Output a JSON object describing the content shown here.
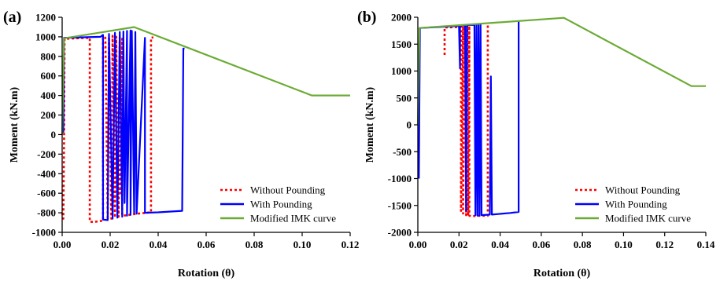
{
  "chart_data": [
    {
      "type": "line",
      "panel_label": "(a)",
      "xlabel": "Rotation (θ)",
      "ylabel": "Moment (kN.m)",
      "xlim": [
        0,
        0.12
      ],
      "ylim": [
        -1000,
        1200
      ],
      "xticks": [
        0.0,
        0.02,
        0.04,
        0.06,
        0.08,
        0.1,
        0.12
      ],
      "xtick_labels": [
        "0.00",
        "0.02",
        "0.04",
        "0.06",
        "0.08",
        "0.10",
        "0.12"
      ],
      "yticks": [
        -1000,
        -800,
        -600,
        -400,
        -200,
        0,
        200,
        400,
        600,
        800,
        1000,
        1200
      ],
      "ytick_labels": [
        "-1000",
        "-800",
        "-600",
        "-400",
        "-200",
        "0",
        "200",
        "400",
        "600",
        "800",
        "1000",
        "1200"
      ],
      "grid": false,
      "legend_position": "bottom-right",
      "series": [
        {
          "name": "Without Pounding",
          "color": "#ff0000",
          "style": "dotted",
          "points": [
            [
              0,
              -800
            ],
            [
              0.0005,
              -860
            ],
            [
              0.0008,
              -60
            ],
            [
              0.001,
              980
            ],
            [
              0.0115,
              990
            ],
            [
              0.0115,
              -890
            ],
            [
              0.013,
              -895
            ],
            [
              0.017,
              -880
            ],
            [
              0.017,
              1000
            ],
            [
              0.018,
              990
            ],
            [
              0.019,
              -870
            ],
            [
              0.0195,
              1000
            ],
            [
              0.0205,
              -860
            ],
            [
              0.021,
              1010
            ],
            [
              0.022,
              -850
            ],
            [
              0.0225,
              1000
            ],
            [
              0.0235,
              -840
            ],
            [
              0.024,
              990
            ],
            [
              0.0245,
              -600
            ],
            [
              0.025,
              980
            ],
            [
              0.025,
              -830
            ],
            [
              0.027,
              -825
            ],
            [
              0.031,
              -810
            ],
            [
              0.035,
              -800
            ],
            [
              0.037,
              -795
            ],
            [
              0.037,
              990
            ],
            [
              0.038,
              995
            ]
          ]
        },
        {
          "name": "With Pounding",
          "color": "#0000ff",
          "style": "solid",
          "points": [
            [
              0.0005,
              20
            ],
            [
              0.0008,
              990
            ],
            [
              0.016,
              1000
            ],
            [
              0.017,
              1020
            ],
            [
              0.017,
              -870
            ],
            [
              0.019,
              -875
            ],
            [
              0.0195,
              1030
            ],
            [
              0.021,
              -860
            ],
            [
              0.022,
              1040
            ],
            [
              0.023,
              -850
            ],
            [
              0.024,
              1050
            ],
            [
              0.025,
              -840
            ],
            [
              0.0255,
              1055
            ],
            [
              0.026,
              -700
            ],
            [
              0.027,
              1060
            ],
            [
              0.027,
              -830
            ],
            [
              0.0285,
              1065
            ],
            [
              0.0285,
              -820
            ],
            [
              0.029,
              1060
            ],
            [
              0.03,
              -800
            ],
            [
              0.0305,
              1050
            ],
            [
              0.031,
              -810
            ],
            [
              0.0345,
              990
            ],
            [
              0.0345,
              -800
            ],
            [
              0.04,
              -795
            ],
            [
              0.05,
              -780
            ],
            [
              0.0505,
              880
            ],
            [
              0.051,
              880
            ]
          ]
        },
        {
          "name": "Modified IMK curve",
          "color": "#6bab35",
          "style": "solid",
          "points": [
            [
              0,
              0
            ],
            [
              0.0008,
              985
            ],
            [
              0.03,
              1100
            ],
            [
              0.104,
              400
            ],
            [
              0.12,
              400
            ]
          ]
        }
      ]
    },
    {
      "type": "line",
      "panel_label": "(b)",
      "xlabel": "Rotation (θ)",
      "ylabel": "Moment (kN.m)",
      "xlim": [
        0,
        0.14
      ],
      "ylim": [
        -2000,
        2000
      ],
      "xticks": [
        0.0,
        0.02,
        0.04,
        0.06,
        0.08,
        0.1,
        0.12,
        0.14
      ],
      "xtick_labels": [
        "0.00",
        "0.02",
        "0.04",
        "0.06",
        "0.08",
        "0.10",
        "0.12",
        "0.14"
      ],
      "yticks": [
        -2000,
        -1500,
        -1000,
        -500,
        0,
        500,
        1000,
        1500,
        2000
      ],
      "ytick_labels": [
        "-2000",
        "-1500",
        "-1000",
        "-500",
        "0",
        "500",
        "1000",
        "1500",
        "2000"
      ],
      "grid": false,
      "legend_position": "bottom-right",
      "series": [
        {
          "name": "Without Pounding",
          "color": "#ff0000",
          "style": "dotted",
          "points": [
            [
              0.013,
              1300
            ],
            [
              0.013,
              1810
            ],
            [
              0.021,
              1820
            ],
            [
              0.021,
              -1600
            ],
            [
              0.022,
              1830
            ],
            [
              0.022,
              -1650
            ],
            [
              0.023,
              1830
            ],
            [
              0.0235,
              -1680
            ],
            [
              0.024,
              1840
            ],
            [
              0.0245,
              -1690
            ],
            [
              0.025,
              1840
            ],
            [
              0.025,
              -1690
            ],
            [
              0.026,
              -1700
            ],
            [
              0.03,
              -1690
            ],
            [
              0.034,
              -1690
            ],
            [
              0.034,
              1850
            ],
            [
              0.035,
              1860
            ]
          ]
        },
        {
          "name": "With Pounding",
          "color": "#0000ff",
          "style": "solid",
          "points": [
            [
              0.0005,
              -1000
            ],
            [
              0.001,
              1800
            ],
            [
              0.02,
              1840
            ],
            [
              0.0205,
              1050
            ],
            [
              0.0205,
              1845
            ],
            [
              0.023,
              1850
            ],
            [
              0.0235,
              -1600
            ],
            [
              0.024,
              1855
            ],
            [
              0.0275,
              1860
            ],
            [
              0.028,
              -1680
            ],
            [
              0.0285,
              1860
            ],
            [
              0.029,
              -1690
            ],
            [
              0.0295,
              1865
            ],
            [
              0.03,
              -1690
            ],
            [
              0.0305,
              1870
            ],
            [
              0.031,
              -1680
            ],
            [
              0.035,
              -1670
            ],
            [
              0.0355,
              900
            ],
            [
              0.036,
              -1670
            ],
            [
              0.045,
              -1640
            ],
            [
              0.049,
              -1620
            ],
            [
              0.049,
              1920
            ]
          ]
        },
        {
          "name": "Modified IMK curve",
          "color": "#6bab35",
          "style": "solid",
          "points": [
            [
              0,
              0
            ],
            [
              0.0008,
              1800
            ],
            [
              0.071,
              1990
            ],
            [
              0.133,
              720
            ],
            [
              0.14,
              720
            ]
          ]
        }
      ]
    }
  ]
}
